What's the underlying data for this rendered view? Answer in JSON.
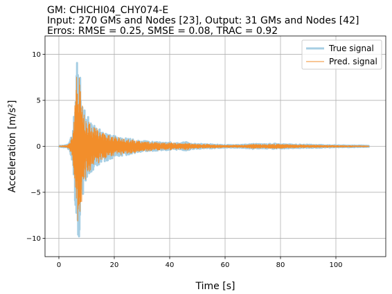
{
  "chart_data": {
    "type": "line",
    "title_lines": [
      "GM: CHICHI04_CHY074-E",
      "Input: 270 GMs and Nodes [23], Output: 31 GMs and Nodes [42]",
      "Erros: RMSE = 0.25, SMSE = 0.08, TRAC = 0.92"
    ],
    "xlabel": "Time [s]",
    "ylabel": "Acceleration [m/s²]",
    "xlim": [
      -5,
      118
    ],
    "ylim": [
      -12,
      12
    ],
    "xticks": [
      0,
      20,
      40,
      60,
      80,
      100
    ],
    "yticks": [
      -10,
      -5,
      0,
      5,
      10
    ],
    "grid": true,
    "legend_position": "upper right",
    "duration": 112,
    "series": [
      {
        "name": "True signal",
        "color": "#a6cee3",
        "envelope": {
          "t": [
            0,
            3,
            4,
            5,
            5.5,
            6,
            6.5,
            7,
            7.5,
            8,
            8.5,
            9,
            10,
            11,
            12,
            13,
            14,
            15,
            16,
            18,
            20,
            22,
            24,
            26,
            28,
            30,
            32,
            34,
            36,
            38,
            40,
            42,
            44,
            46,
            48,
            50,
            55,
            60,
            65,
            68,
            70,
            72,
            75,
            78,
            80,
            85,
            90,
            95,
            100,
            105,
            110,
            112
          ],
          "pos": [
            0.05,
            0.15,
            0.6,
            1.8,
            3.5,
            6.5,
            9.0,
            10.8,
            9.5,
            7.0,
            5.0,
            4.2,
            3.5,
            3.0,
            2.5,
            2.3,
            2.0,
            1.8,
            1.6,
            1.4,
            1.2,
            1.0,
            0.9,
            0.8,
            0.7,
            0.6,
            0.55,
            0.5,
            0.45,
            0.4,
            0.45,
            0.4,
            0.35,
            0.55,
            0.3,
            0.28,
            0.22,
            0.15,
            0.15,
            0.2,
            0.28,
            0.25,
            0.25,
            0.3,
            0.25,
            0.2,
            0.18,
            0.15,
            0.12,
            0.1,
            0.08,
            0.05
          ],
          "neg": [
            0.05,
            0.15,
            0.6,
            1.8,
            3.8,
            7.2,
            9.5,
            11.0,
            9.0,
            7.5,
            6.0,
            4.5,
            3.8,
            3.2,
            2.8,
            2.4,
            2.1,
            1.9,
            1.7,
            1.5,
            1.3,
            1.1,
            1.0,
            0.85,
            0.75,
            0.65,
            0.6,
            0.5,
            0.45,
            0.4,
            0.45,
            0.4,
            0.35,
            0.5,
            0.3,
            0.28,
            0.22,
            0.15,
            0.15,
            0.2,
            0.28,
            0.25,
            0.25,
            0.3,
            0.25,
            0.2,
            0.18,
            0.15,
            0.12,
            0.1,
            0.08,
            0.05
          ]
        }
      },
      {
        "name": "Pred. signal",
        "color": "#f28e2b",
        "envelope": {
          "t": [
            0,
            3,
            4,
            5,
            5.5,
            6,
            6.5,
            7,
            7.5,
            8,
            8.5,
            9,
            10,
            11,
            12,
            13,
            14,
            15,
            16,
            18,
            20,
            22,
            24,
            26,
            28,
            30,
            32,
            34,
            36,
            38,
            40,
            42,
            44,
            46,
            48,
            50,
            55,
            60,
            65,
            68,
            70,
            72,
            75,
            78,
            80,
            85,
            90,
            95,
            100,
            105,
            110,
            112
          ],
          "pos": [
            0.04,
            0.12,
            0.5,
            1.6,
            3.2,
            6.0,
            8.2,
            10.2,
            9.8,
            7.2,
            4.8,
            4.0,
            3.3,
            2.9,
            2.4,
            2.2,
            1.9,
            1.7,
            1.5,
            1.3,
            1.1,
            0.95,
            0.85,
            0.75,
            0.65,
            0.55,
            0.5,
            0.45,
            0.4,
            0.35,
            0.4,
            0.35,
            0.3,
            0.45,
            0.25,
            0.24,
            0.2,
            0.13,
            0.13,
            0.17,
            0.24,
            0.22,
            0.22,
            0.26,
            0.22,
            0.18,
            0.15,
            0.13,
            0.1,
            0.08,
            0.06,
            0.04
          ],
          "neg": [
            0.04,
            0.12,
            0.5,
            1.6,
            3.5,
            6.8,
            8.5,
            9.5,
            8.2,
            7.0,
            5.5,
            4.2,
            3.5,
            3.0,
            2.6,
            2.2,
            1.9,
            1.7,
            1.5,
            1.3,
            1.2,
            1.0,
            0.9,
            0.8,
            0.7,
            0.6,
            0.55,
            0.45,
            0.4,
            0.35,
            0.4,
            0.35,
            0.3,
            0.45,
            0.25,
            0.24,
            0.2,
            0.13,
            0.13,
            0.17,
            0.24,
            0.22,
            0.22,
            0.26,
            0.22,
            0.18,
            0.15,
            0.13,
            0.1,
            0.08,
            0.06,
            0.04
          ]
        }
      }
    ]
  }
}
